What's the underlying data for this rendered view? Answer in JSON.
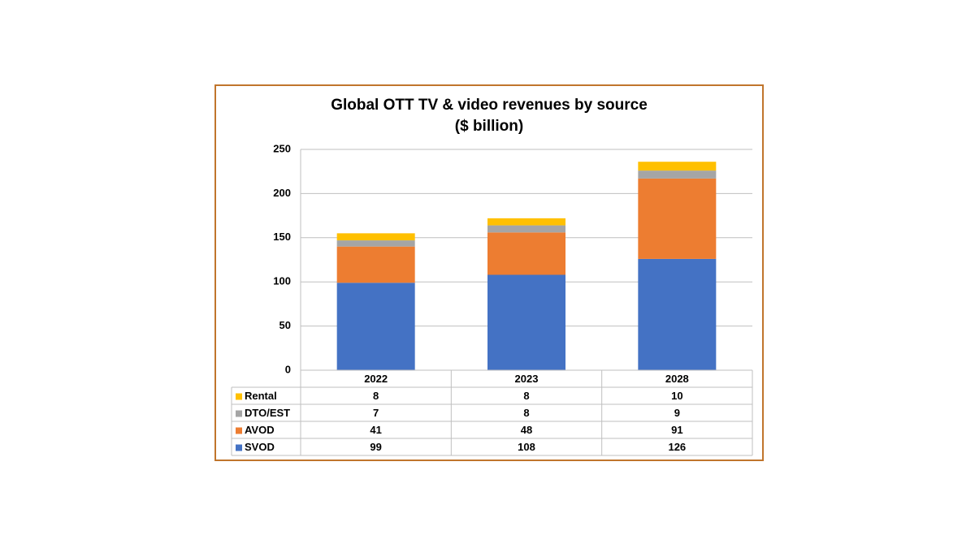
{
  "chart_data": {
    "type": "stacked-bar",
    "title": "Global OTT TV & video revenues by source",
    "subtitle": "($ billion)",
    "categories": [
      "2022",
      "2023",
      "2028"
    ],
    "series": [
      {
        "name": "SVOD",
        "color": "#4472c4",
        "values": [
          99,
          108,
          126
        ]
      },
      {
        "name": "AVOD",
        "color": "#ed7d31",
        "values": [
          41,
          48,
          91
        ]
      },
      {
        "name": "DTO/EST",
        "color": "#a5a5a5",
        "values": [
          7,
          8,
          9
        ]
      },
      {
        "name": "Rental",
        "color": "#ffc000",
        "values": [
          8,
          8,
          10
        ]
      }
    ],
    "ylim": [
      0,
      250
    ],
    "yticks": [
      0,
      50,
      100,
      150,
      200,
      250
    ],
    "grid": true
  }
}
